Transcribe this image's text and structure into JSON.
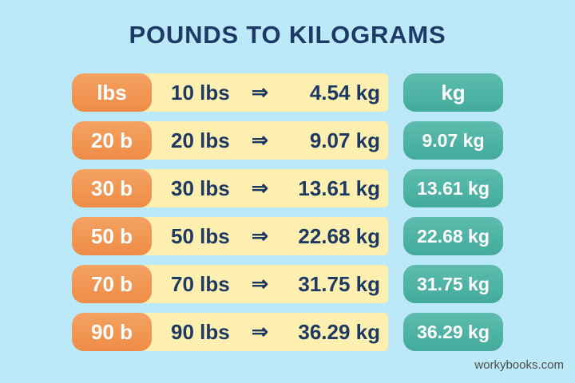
{
  "title": "POUNDS TO KILOGRAMS",
  "arrow_glyph": "⇒",
  "watermark": "workybooks.com",
  "colors": {
    "background": "#bce9f7",
    "bar_yellow": "#fcefb0",
    "pill_orange": "#f0914e",
    "pill_teal": "#4bb1a2",
    "text_navy": "#1e3a63",
    "pill_text": "#ffffff",
    "watermark_text": "#4d4d4d"
  },
  "rows": [
    {
      "left_label": "lbs",
      "lbs_text": "10 lbs",
      "kg_text": "4.54 kg",
      "right_label": "kg"
    },
    {
      "left_label": "20 b",
      "lbs_text": "20 lbs",
      "kg_text": "9.07 kg",
      "right_label": "9.07 kg"
    },
    {
      "left_label": "30 b",
      "lbs_text": "30 lbs",
      "kg_text": "13.61 kg",
      "right_label": "13.61 kg"
    },
    {
      "left_label": "50 b",
      "lbs_text": "50 lbs",
      "kg_text": "22.68 kg",
      "right_label": "22.68 kg"
    },
    {
      "left_label": "70 b",
      "lbs_text": "70 lbs",
      "kg_text": "31.75 kg",
      "right_label": "31.75 kg"
    },
    {
      "left_label": "90 b",
      "lbs_text": "90 lbs",
      "kg_text": "36.29 kg",
      "right_label": "36.29 kg"
    }
  ],
  "chart_data": {
    "type": "table",
    "title": "POUNDS TO KILOGRAMS",
    "columns": [
      "lbs",
      "kg"
    ],
    "rows": [
      [
        10,
        4.54
      ],
      [
        20,
        9.07
      ],
      [
        30,
        13.61
      ],
      [
        50,
        22.68
      ],
      [
        70,
        31.75
      ],
      [
        90,
        36.29
      ]
    ],
    "notes": "Conversion table infographic; each row shows pounds converted to kilograms."
  }
}
